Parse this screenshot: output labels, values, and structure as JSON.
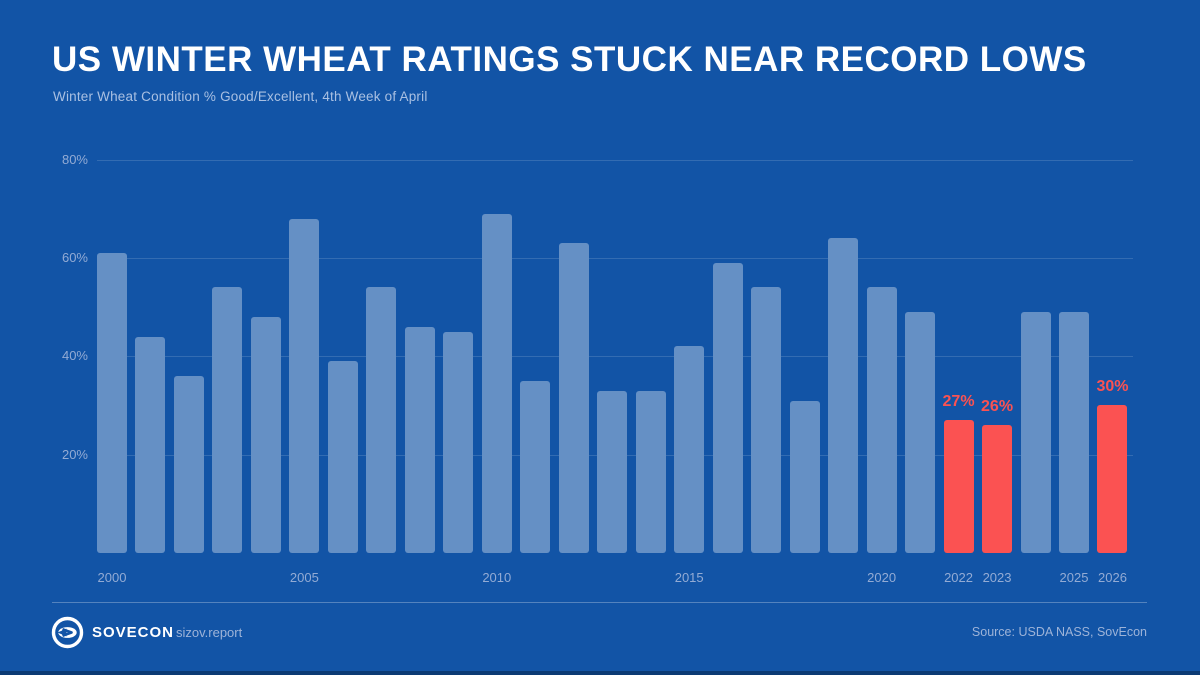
{
  "header": {
    "title": "US WINTER WHEAT RATINGS STUCK NEAR RECORD LOWS",
    "subtitle": "Winter Wheat Condition % Good/Excellent, 4th Week of April"
  },
  "chart_data": {
    "type": "bar",
    "title": "US WINTER WHEAT RATINGS STUCK NEAR RECORD LOWS",
    "subtitle": "Winter Wheat Condition % Good/Excellent, 4th Week of April",
    "xlabel": "",
    "ylabel": "Winter Wheat Condition % Good/Excellent",
    "ylim": [
      0,
      84
    ],
    "grid": true,
    "y_ticks": [
      20,
      40,
      60,
      80
    ],
    "y_tick_suffix": "%",
    "x_tick_years": [
      2000,
      2005,
      2010,
      2015,
      2020,
      2022,
      2023,
      2025,
      2026
    ],
    "categories": [
      2000,
      2001,
      2002,
      2003,
      2004,
      2005,
      2006,
      2007,
      2008,
      2009,
      2010,
      2011,
      2012,
      2013,
      2014,
      2015,
      2016,
      2017,
      2018,
      2019,
      2020,
      2021,
      2022,
      2023,
      2024,
      2025,
      2026
    ],
    "values": [
      61,
      44,
      36,
      54,
      48,
      68,
      39,
      54,
      46,
      45,
      69,
      35,
      63,
      33,
      33,
      42,
      59,
      54,
      31,
      64,
      54,
      49,
      27,
      26,
      49,
      49,
      30
    ],
    "highlight_years": [
      2022,
      2023,
      2026
    ],
    "bar_labels": {
      "2022": "27%",
      "2023": "26%",
      "2026": "30%"
    },
    "colors": {
      "background": "#1254a6",
      "bar": "#6590c5",
      "highlight": "#fb5252",
      "grid_line": "rgba(255,255,255,0.14)",
      "axis_text": "#93abd4",
      "title_text": "#ffffff",
      "subtitle_text": "#a9c0e2"
    },
    "legend": []
  },
  "footer": {
    "brand": "SOVECON",
    "site": "sizov.report",
    "source": "Source: USDA NASS, SovEcon",
    "logo_icon": "sovecon-logo"
  }
}
